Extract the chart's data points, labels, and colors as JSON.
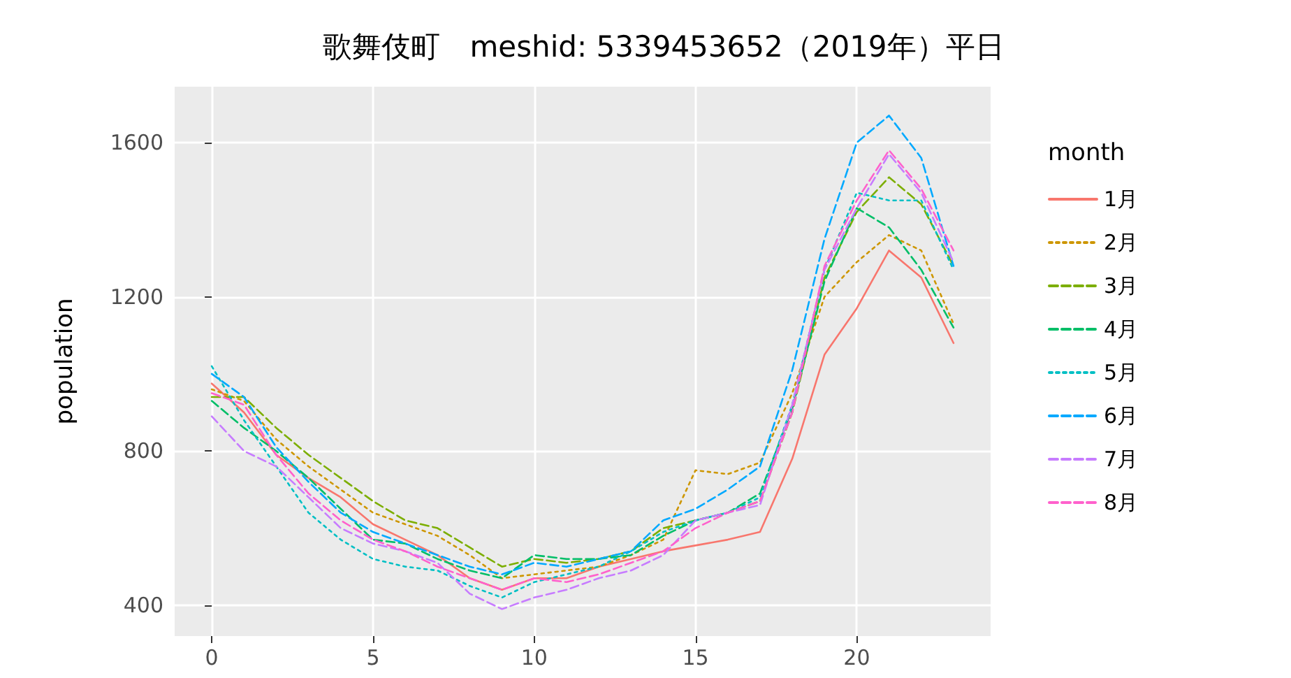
{
  "chart_data": {
    "type": "line",
    "title": "歌舞伎町　meshid: 5339453652（2019年）平日",
    "ylabel": "population",
    "legend_title": "month",
    "x": [
      0,
      1,
      2,
      3,
      4,
      5,
      6,
      7,
      8,
      9,
      10,
      11,
      12,
      13,
      14,
      15,
      16,
      17,
      18,
      19,
      20,
      21,
      22,
      23
    ],
    "xlim": [
      -1.15,
      24.15
    ],
    "xticks": [
      0,
      5,
      10,
      15,
      20
    ],
    "ylim": [
      320,
      1745
    ],
    "yticks": [
      400,
      800,
      1200,
      1600
    ],
    "grid": true,
    "legend": "right",
    "marker": "none",
    "series": [
      {
        "name": "1月",
        "color": "#f8766d",
        "line_style": "solid",
        "values": [
          975,
          900,
          790,
          730,
          680,
          610,
          570,
          530,
          470,
          440,
          470,
          470,
          500,
          520,
          540,
          555,
          570,
          590,
          780,
          1050,
          1170,
          1320,
          1250,
          1080
        ]
      },
      {
        "name": "2月",
        "color": "#cd9600",
        "line_style": "dotted",
        "values": [
          960,
          930,
          830,
          760,
          700,
          640,
          610,
          580,
          530,
          470,
          480,
          490,
          500,
          530,
          570,
          750,
          740,
          770,
          950,
          1200,
          1290,
          1360,
          1320,
          1130
        ]
      },
      {
        "name": "3月",
        "color": "#7cae00",
        "line_style": "dashed",
        "values": [
          940,
          940,
          860,
          790,
          730,
          670,
          620,
          600,
          550,
          500,
          520,
          510,
          520,
          540,
          600,
          620,
          640,
          670,
          900,
          1250,
          1420,
          1510,
          1440,
          1280
        ]
      },
      {
        "name": "4月",
        "color": "#00be67",
        "line_style": "dashed",
        "values": [
          930,
          860,
          800,
          730,
          650,
          570,
          560,
          520,
          490,
          470,
          530,
          520,
          520,
          530,
          580,
          620,
          640,
          690,
          910,
          1240,
          1430,
          1380,
          1270,
          1120
        ]
      },
      {
        "name": "5月",
        "color": "#00bfc4",
        "line_style": "dotted",
        "values": [
          1020,
          880,
          760,
          640,
          570,
          520,
          500,
          490,
          450,
          420,
          460,
          480,
          500,
          540,
          590,
          620,
          640,
          680,
          920,
          1270,
          1470,
          1450,
          1450,
          1270
        ]
      },
      {
        "name": "6月",
        "color": "#00a9ff",
        "line_style": "dashed",
        "values": [
          1000,
          940,
          810,
          720,
          640,
          590,
          560,
          530,
          500,
          480,
          510,
          500,
          520,
          540,
          620,
          650,
          700,
          760,
          1010,
          1350,
          1600,
          1670,
          1560,
          1280
        ]
      },
      {
        "name": "7月",
        "color": "#c77cff",
        "line_style": "dashed",
        "values": [
          890,
          800,
          760,
          680,
          600,
          560,
          540,
          510,
          430,
          390,
          420,
          440,
          470,
          490,
          530,
          620,
          640,
          660,
          920,
          1270,
          1430,
          1570,
          1470,
          1290
        ]
      },
      {
        "name": "8月",
        "color": "#ff61cc",
        "line_style": "dashed",
        "values": [
          950,
          920,
          790,
          690,
          620,
          570,
          540,
          500,
          470,
          440,
          470,
          460,
          480,
          510,
          540,
          600,
          640,
          670,
          900,
          1280,
          1450,
          1580,
          1480,
          1320
        ]
      }
    ]
  }
}
